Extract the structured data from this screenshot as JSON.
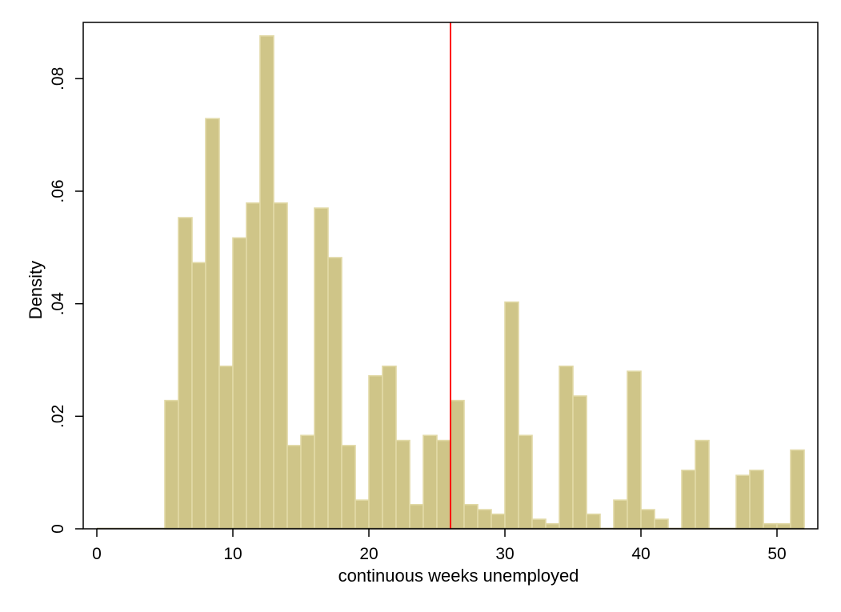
{
  "chart_data": {
    "type": "histogram",
    "xlabel": "continuous weeks unemployed",
    "ylabel": "Density",
    "xlim": [
      -1,
      53
    ],
    "ylim": [
      0,
      0.09
    ],
    "xticks": [
      0,
      10,
      20,
      30,
      40,
      50
    ],
    "xtick_labels": [
      "0",
      "10",
      "20",
      "30",
      "40",
      "50"
    ],
    "yticks": [
      0,
      0.02,
      0.04,
      0.06,
      0.08
    ],
    "ytick_labels": [
      "0",
      ".02",
      ".04",
      ".06",
      ".08"
    ],
    "grid": false,
    "bin_width": 1,
    "bins": [
      {
        "x": 0,
        "value": 0
      },
      {
        "x": 1,
        "value": 0
      },
      {
        "x": 2,
        "value": 0
      },
      {
        "x": 3,
        "value": 0
      },
      {
        "x": 4,
        "value": 0
      },
      {
        "x": 5,
        "value": 0.0228
      },
      {
        "x": 6,
        "value": 0.0553
      },
      {
        "x": 7,
        "value": 0.0473
      },
      {
        "x": 8,
        "value": 0.0729
      },
      {
        "x": 9,
        "value": 0.0289
      },
      {
        "x": 10,
        "value": 0.0517
      },
      {
        "x": 11,
        "value": 0.0579
      },
      {
        "x": 12,
        "value": 0.0876
      },
      {
        "x": 13,
        "value": 0.0579
      },
      {
        "x": 14,
        "value": 0.0148
      },
      {
        "x": 15,
        "value": 0.0166
      },
      {
        "x": 16,
        "value": 0.057
      },
      {
        "x": 17,
        "value": 0.0482
      },
      {
        "x": 18,
        "value": 0.0148
      },
      {
        "x": 19,
        "value": 0.0051
      },
      {
        "x": 20,
        "value": 0.0272
      },
      {
        "x": 21,
        "value": 0.0289
      },
      {
        "x": 22,
        "value": 0.0157
      },
      {
        "x": 23,
        "value": 0.0043
      },
      {
        "x": 24,
        "value": 0.0166
      },
      {
        "x": 25,
        "value": 0.0157
      },
      {
        "x": 26,
        "value": 0.0228
      },
      {
        "x": 27,
        "value": 0.0043
      },
      {
        "x": 28,
        "value": 0.0034
      },
      {
        "x": 29,
        "value": 0.0026
      },
      {
        "x": 30,
        "value": 0.0403
      },
      {
        "x": 31,
        "value": 0.0166
      },
      {
        "x": 32,
        "value": 0.0017
      },
      {
        "x": 33,
        "value": 0.0009
      },
      {
        "x": 34,
        "value": 0.0289
      },
      {
        "x": 35,
        "value": 0.0236
      },
      {
        "x": 36,
        "value": 0.0026
      },
      {
        "x": 37,
        "value": 0
      },
      {
        "x": 38,
        "value": 0.0051
      },
      {
        "x": 39,
        "value": 0.028
      },
      {
        "x": 40,
        "value": 0.0034
      },
      {
        "x": 41,
        "value": 0.0017
      },
      {
        "x": 42,
        "value": 0
      },
      {
        "x": 43,
        "value": 0.0104
      },
      {
        "x": 44,
        "value": 0.0157
      },
      {
        "x": 45,
        "value": 0
      },
      {
        "x": 46,
        "value": 0
      },
      {
        "x": 47,
        "value": 0.0095
      },
      {
        "x": 48,
        "value": 0.0104
      },
      {
        "x": 49,
        "value": 0.0009
      },
      {
        "x": 50,
        "value": 0.0009
      },
      {
        "x": 51,
        "value": 0.014
      }
    ],
    "reference_line_x": 26,
    "colors": {
      "bar_fill": "#cfc588",
      "bar_edge": "#e1d9a6",
      "reference_line": "#ff0000",
      "axis": "#000000"
    }
  }
}
